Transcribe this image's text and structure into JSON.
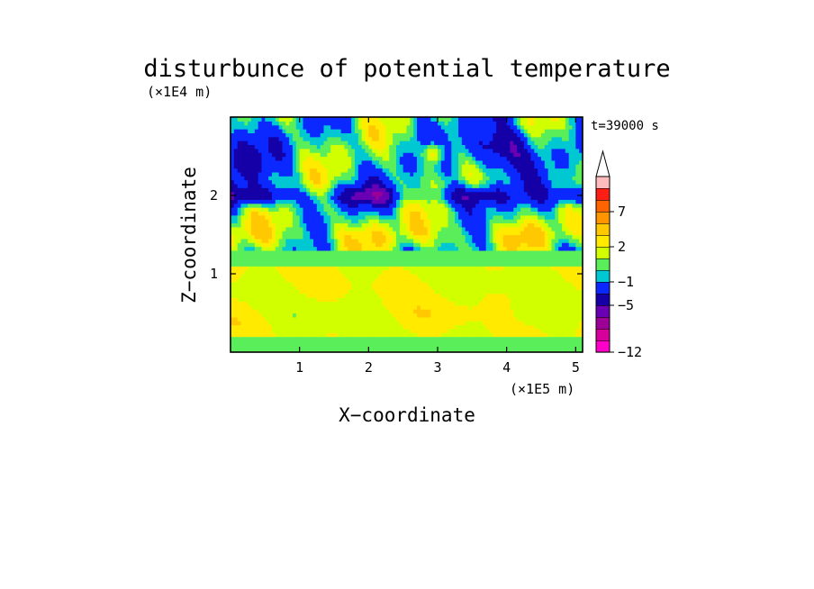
{
  "chart_data": {
    "type": "heatmap",
    "title": "disturbunce of potential temperature",
    "xlabel": "X−coordinate",
    "ylabel": "Z−coordinate",
    "x_unit": "(×1E5 m)",
    "y_unit": "(×1E4 m)",
    "time_label": "t=39000 s",
    "xlim": [
      0,
      5.1
    ],
    "ylim": [
      0,
      3.0
    ],
    "x_ticks": [
      1,
      2,
      3,
      4,
      5
    ],
    "y_ticks": [
      1,
      2
    ],
    "colorbar": {
      "levels": [
        -12,
        -11,
        -9,
        -7,
        -5,
        -3,
        -1,
        0,
        1,
        2,
        3,
        5,
        7,
        9,
        11
      ],
      "colors": [
        "#ff00c8",
        "#d6009a",
        "#9c0096",
        "#6a00b4",
        "#1400a6",
        "#0a28ff",
        "#00c8d2",
        "#5aee5a",
        "#d2ff00",
        "#ffea00",
        "#ffc800",
        "#ff9600",
        "#ff6400",
        "#ff1e14",
        "#ffbcbc"
      ],
      "tick_labels": [
        "−12",
        "−5",
        "−1",
        "2",
        "7"
      ],
      "tick_values": [
        -12,
        -5,
        -1,
        2,
        7
      ],
      "extend": "max"
    },
    "approx_regions": [
      {
        "z_range": [
          0.0,
          0.2
        ],
        "x_range": [
          0.0,
          5.1
        ],
        "value_range": [
          0,
          1
        ],
        "note": "green band near surface"
      },
      {
        "z_range": [
          0.2,
          1.1
        ],
        "x_range": [
          0.0,
          5.1
        ],
        "value_range": [
          1,
          3
        ],
        "note": "yellow/orange lower layer"
      },
      {
        "z_range": [
          1.1,
          1.3
        ],
        "x_range": [
          0.0,
          5.1
        ],
        "value_range": [
          0,
          1
        ],
        "note": "green band"
      },
      {
        "z_range": [
          1.3,
          3.0
        ],
        "x_range": [
          0.0,
          5.1
        ],
        "value_range": [
          -7,
          9
        ],
        "note": "mixed positive and negative perturbations"
      }
    ]
  }
}
